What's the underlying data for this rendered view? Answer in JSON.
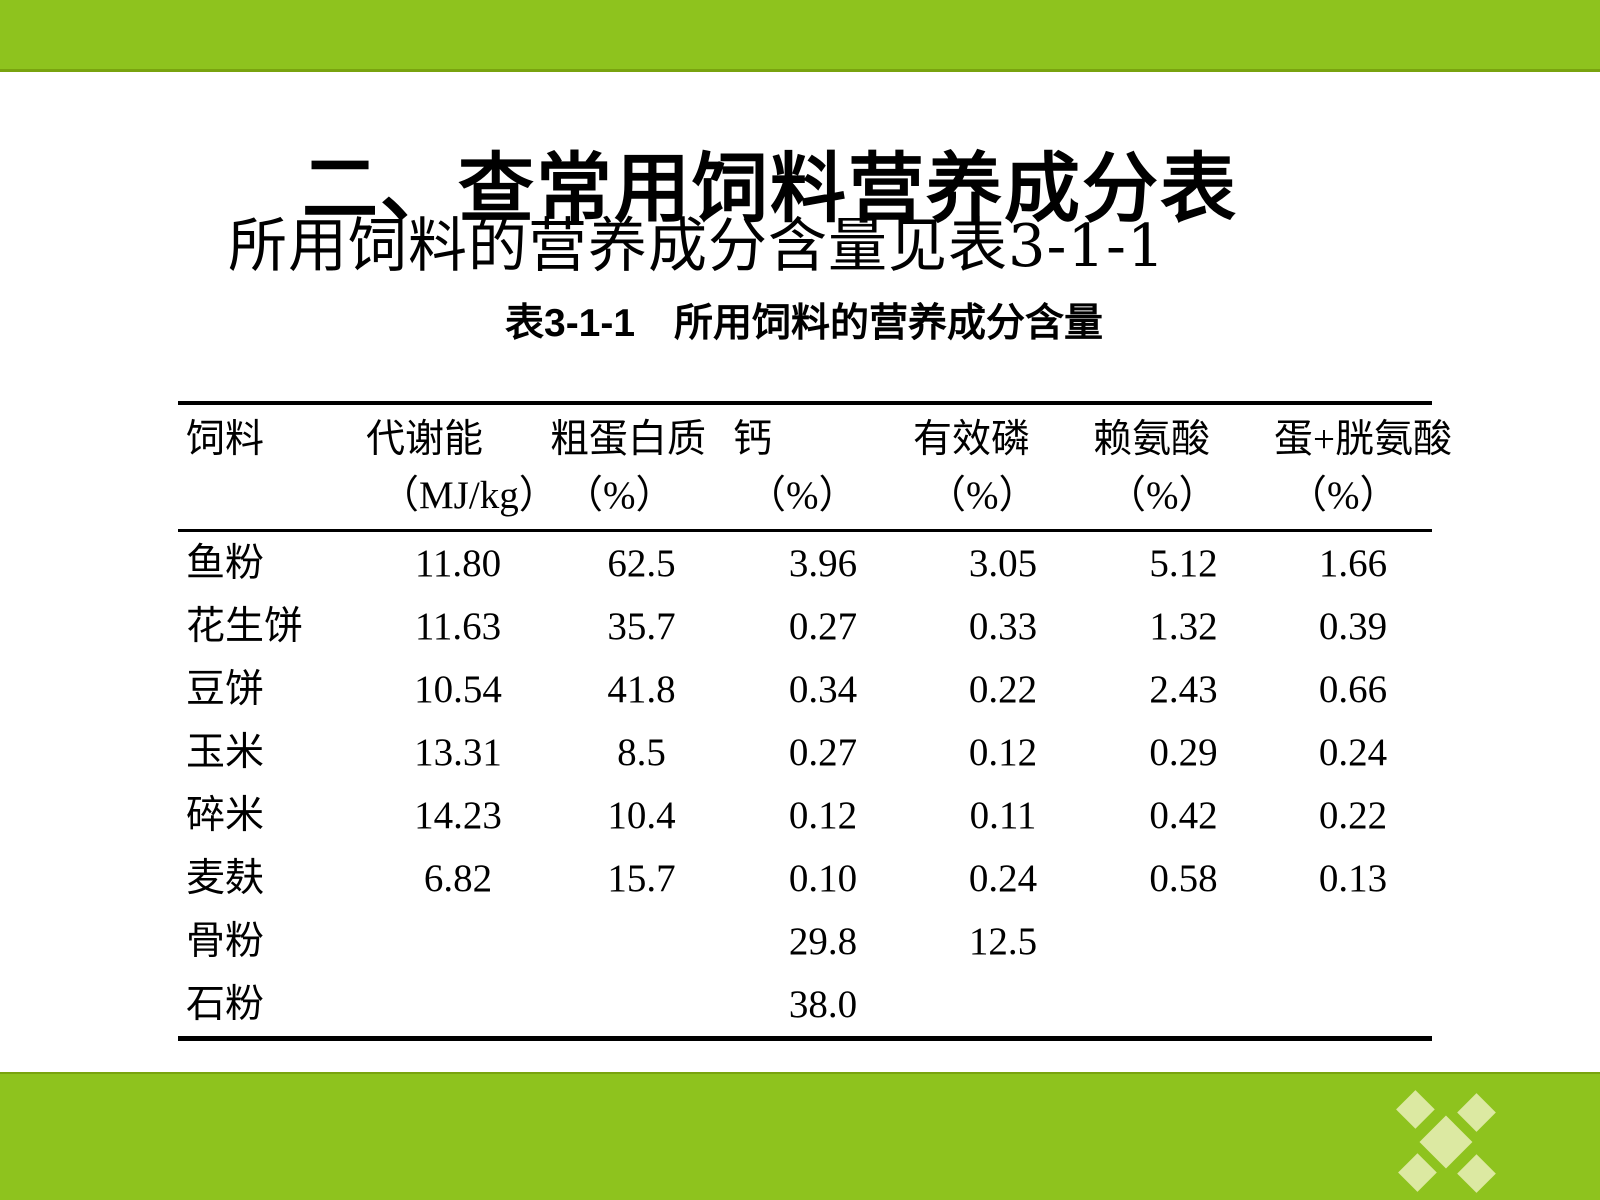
{
  "slide": {
    "title": "二、查常用饲料营养成分表",
    "subtitle": "所用饲料的营养成分含量见表3-1-1",
    "table_caption": "表3-1-1　所用饲料的营养成分含量"
  },
  "table": {
    "columns": [
      {
        "label": "饲料",
        "unit": ""
      },
      {
        "label": "代谢能",
        "unit": "（MJ/kg）"
      },
      {
        "label": "粗蛋白质",
        "unit": "（%）"
      },
      {
        "label": "钙",
        "unit": "（%）"
      },
      {
        "label": "有效磷",
        "unit": "（%）"
      },
      {
        "label": "赖氨酸",
        "unit": "（%）"
      },
      {
        "label": "蛋+胱氨酸",
        "unit": "（%）"
      }
    ],
    "rows": [
      {
        "feed": "鱼粉",
        "values": [
          "11.80",
          "62.5",
          "3.96",
          "3.05",
          "5.12",
          "1.66"
        ]
      },
      {
        "feed": "花生饼",
        "values": [
          "11.63",
          "35.7",
          "0.27",
          "0.33",
          "1.32",
          "0.39"
        ]
      },
      {
        "feed": "豆饼",
        "values": [
          "10.54",
          "41.8",
          "0.34",
          "0.22",
          "2.43",
          "0.66"
        ]
      },
      {
        "feed": "玉米",
        "values": [
          "13.31",
          "8.5",
          "0.27",
          "0.12",
          "0.29",
          "0.24"
        ]
      },
      {
        "feed": "碎米",
        "values": [
          "14.23",
          "10.4",
          "0.12",
          "0.11",
          "0.42",
          "0.22"
        ]
      },
      {
        "feed": "麦麸",
        "values": [
          "6.82",
          "15.7",
          "0.10",
          "0.24",
          "0.58",
          "0.13"
        ]
      },
      {
        "feed": "骨粉",
        "values": [
          "",
          "",
          "29.8",
          "12.5",
          "",
          ""
        ]
      },
      {
        "feed": "石粉",
        "values": [
          "",
          "",
          "38.0",
          "",
          "",
          ""
        ]
      }
    ]
  },
  "theme": {
    "bar_green": "#8ec31e",
    "bar_edge_green": "#79a30f",
    "logo_diamond_fill": "#dce9a2",
    "text_color": "#000000",
    "background": "#ffffff"
  },
  "logo": {
    "name": "diamond-cluster-logo",
    "description": "five pale-green diamonds: large center, four small corners"
  }
}
